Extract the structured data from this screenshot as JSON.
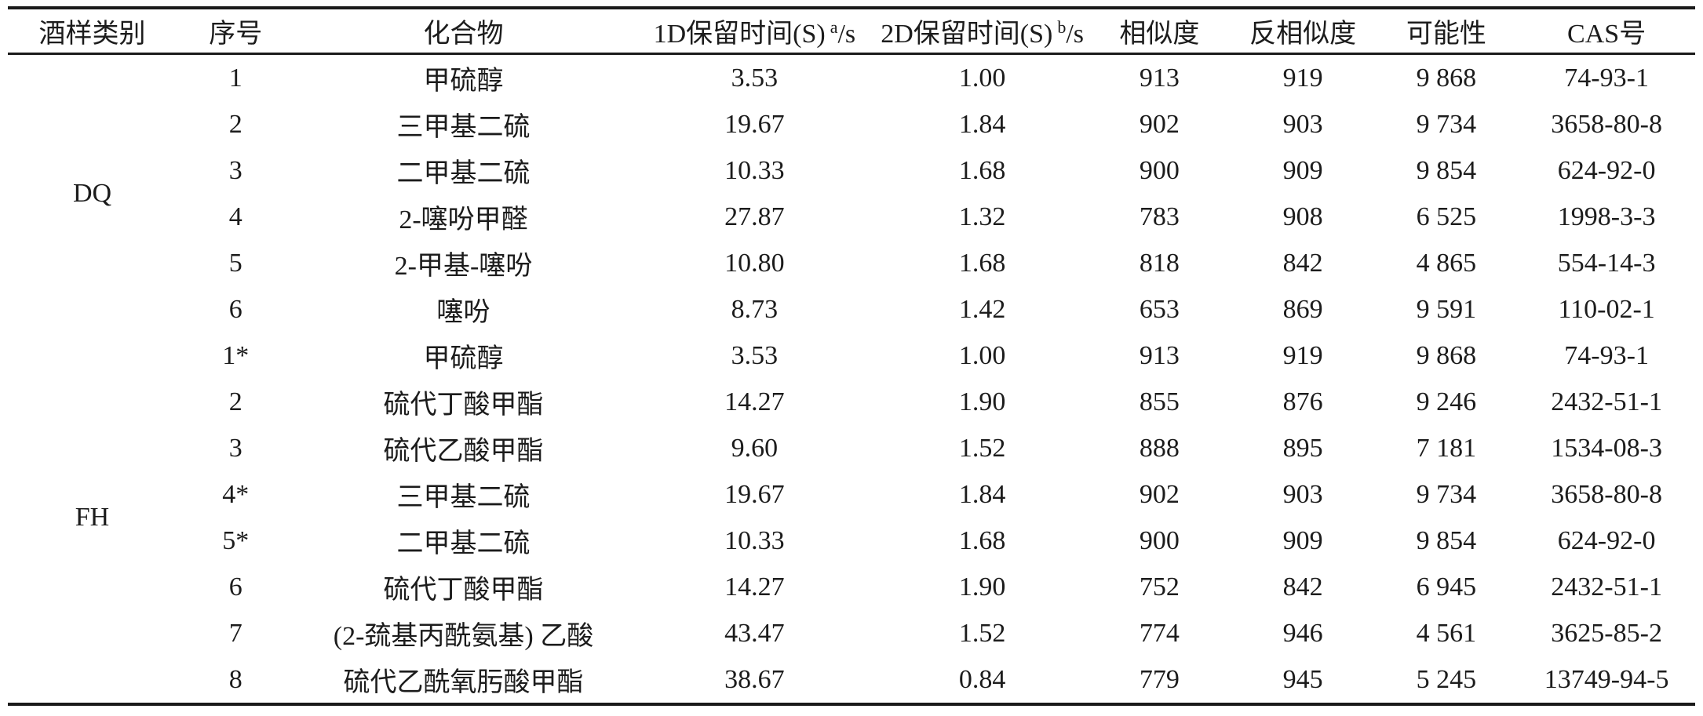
{
  "page": {
    "background_color": "#ffffff",
    "text_color": "#1c1c1c",
    "rule_color": "#1a1a1a"
  },
  "table": {
    "headers": {
      "sample_type": "酒样类别",
      "serial": "序号",
      "compound": "化合物",
      "rt1": {
        "prefix": "1D保留时间(S)",
        "sup": "a",
        "suffix": "/s"
      },
      "rt2": {
        "prefix": "2D保留时间(S)",
        "sup": "b",
        "suffix": "/s"
      },
      "similarity": "相似度",
      "reverse_similarity": "反相似度",
      "probability": "可能性",
      "cas": "CAS号"
    },
    "groups": [
      {
        "label": "DQ",
        "rows": [
          {
            "no": "1",
            "compound": "甲硫醇",
            "rt1": "3.53",
            "rt2": "1.00",
            "sim": "913",
            "rsim": "919",
            "prob": "9 868",
            "cas": "74-93-1"
          },
          {
            "no": "2",
            "compound": "三甲基二硫",
            "rt1": "19.67",
            "rt2": "1.84",
            "sim": "902",
            "rsim": "903",
            "prob": "9 734",
            "cas": "3658-80-8"
          },
          {
            "no": "3",
            "compound": "二甲基二硫",
            "rt1": "10.33",
            "rt2": "1.68",
            "sim": "900",
            "rsim": "909",
            "prob": "9 854",
            "cas": "624-92-0"
          },
          {
            "no": "4",
            "compound": "2-噻吩甲醛",
            "rt1": "27.87",
            "rt2": "1.32",
            "sim": "783",
            "rsim": "908",
            "prob": "6 525",
            "cas": "1998-3-3"
          },
          {
            "no": "5",
            "compound": "2-甲基-噻吩",
            "rt1": "10.80",
            "rt2": "1.68",
            "sim": "818",
            "rsim": "842",
            "prob": "4 865",
            "cas": "554-14-3"
          },
          {
            "no": "6",
            "compound": "噻吩",
            "rt1": "8.73",
            "rt2": "1.42",
            "sim": "653",
            "rsim": "869",
            "prob": "9 591",
            "cas": "110-02-1"
          }
        ]
      },
      {
        "label": "FH",
        "rows": [
          {
            "no": "1*",
            "compound": "甲硫醇",
            "rt1": "3.53",
            "rt2": "1.00",
            "sim": "913",
            "rsim": "919",
            "prob": "9 868",
            "cas": "74-93-1"
          },
          {
            "no": "2",
            "compound": "硫代丁酸甲酯",
            "rt1": "14.27",
            "rt2": "1.90",
            "sim": "855",
            "rsim": "876",
            "prob": "9 246",
            "cas": "2432-51-1"
          },
          {
            "no": "3",
            "compound": "硫代乙酸甲酯",
            "rt1": "9.60",
            "rt2": "1.52",
            "sim": "888",
            "rsim": "895",
            "prob": "7 181",
            "cas": "1534-08-3"
          },
          {
            "no": "4*",
            "compound": "三甲基二硫",
            "rt1": "19.67",
            "rt2": "1.84",
            "sim": "902",
            "rsim": "903",
            "prob": "9 734",
            "cas": "3658-80-8"
          },
          {
            "no": "5*",
            "compound": "二甲基二硫",
            "rt1": "10.33",
            "rt2": "1.68",
            "sim": "900",
            "rsim": "909",
            "prob": "9 854",
            "cas": "624-92-0"
          },
          {
            "no": "6",
            "compound": "硫代丁酸甲酯",
            "rt1": "14.27",
            "rt2": "1.90",
            "sim": "752",
            "rsim": "842",
            "prob": "6 945",
            "cas": "2432-51-1"
          },
          {
            "no": "7",
            "compound": "(2-巯基丙酰氨基) 乙酸",
            "rt1": "43.47",
            "rt2": "1.52",
            "sim": "774",
            "rsim": "946",
            "prob": "4 561",
            "cas": "3625-85-2"
          },
          {
            "no": "8",
            "compound": "硫代乙酰氧肟酸甲酯",
            "rt1": "38.67",
            "rt2": "0.84",
            "sim": "779",
            "rsim": "945",
            "prob": "5 245",
            "cas": "13749-94-5"
          }
        ]
      }
    ]
  }
}
